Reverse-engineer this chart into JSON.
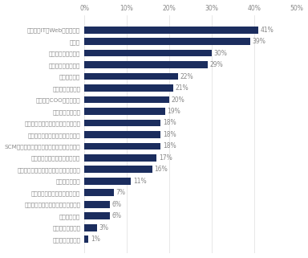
{
  "categories": [
    "クリエイティブ系",
    "サービス・流通系",
    "金融系専門職",
    "技術系（化学・素材・食品・衣料）",
    "技術・専門職系（メディカル）",
    "不動産系専門職",
    "技術系（建築・設備・土木・プラント）",
    "技術系（電気・電子・半導体）",
    "SCM・ロジスティクス・物流・購買・貿易系",
    "法務・コンプライアンス・知財系",
    "技術系（機械・メカトロ・自動車）",
    "マーケティング系",
    "経営者・COO・経営幹部",
    "コンサルタント系",
    "人事・総務系",
    "経営企画・事業企画",
    "経理・財務・会計系",
    "営業系",
    "技術系（IT・Web・通信系）"
  ],
  "values": [
    1,
    3,
    6,
    6,
    7,
    11,
    16,
    17,
    18,
    18,
    18,
    19,
    20,
    21,
    22,
    29,
    30,
    39,
    41
  ],
  "bar_color": "#1b2d5e",
  "label_color": "#888888",
  "xlim": [
    0,
    50
  ],
  "xticks": [
    0,
    10,
    20,
    30,
    40,
    50
  ],
  "background_color": "#ffffff",
  "bar_height": 0.6,
  "figsize": [
    3.84,
    3.21
  ],
  "dpi": 100
}
